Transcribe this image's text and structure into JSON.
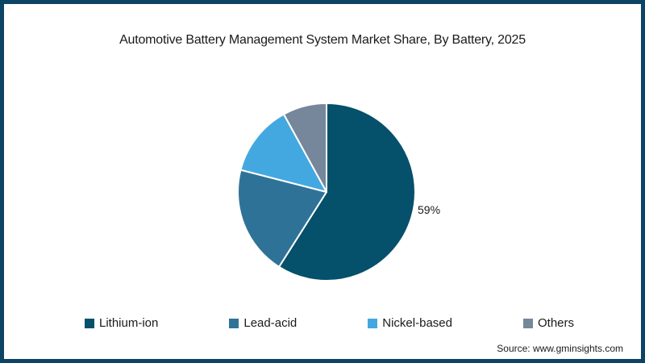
{
  "page": {
    "background": "#ffffff",
    "border_color": "#0d4365"
  },
  "header": {
    "title": "Automotive Battery Management System Market Share, By Battery, 2025"
  },
  "chart_data": {
    "type": "pie",
    "title": "Automotive Battery Management System Market Share, By Battery, 2025",
    "categories": [
      "Lithium-ion",
      "Lead-acid",
      "Nickel-based",
      "Others"
    ],
    "values": [
      59,
      20,
      13,
      8
    ],
    "colors": [
      "#05506a",
      "#2f7298",
      "#44a8e0",
      "#76879b"
    ],
    "slice_border_color": "#ffffff",
    "start_angle_deg": 0,
    "direction": "clockwise",
    "legend_position": "bottom",
    "value_labels": [
      {
        "slice": "Lithium-ion",
        "text": "59%"
      }
    ]
  },
  "source": {
    "label": "Source: www.gminsights.com"
  }
}
